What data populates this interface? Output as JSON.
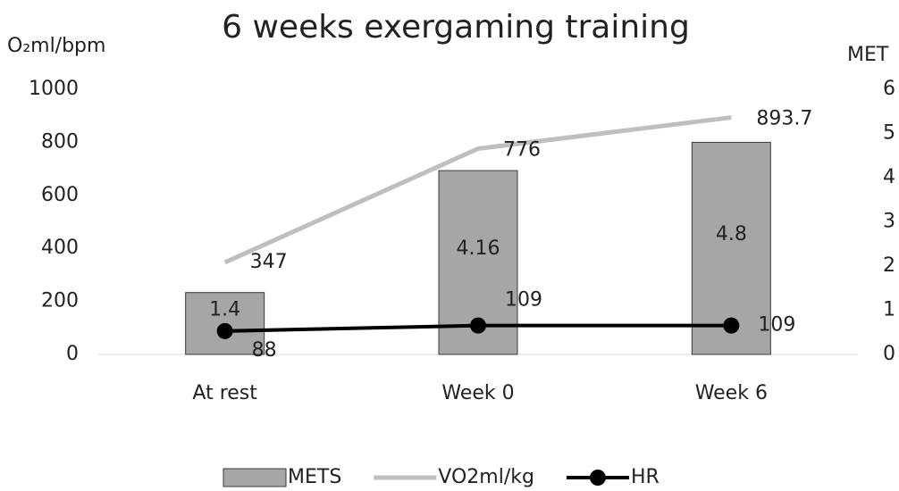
{
  "chart_data": {
    "type": "combo",
    "title": "6 weeks exergaming training",
    "y_label": "O₂ml/bpm",
    "y2_label": "MET",
    "categories": [
      "At rest",
      "Week 0",
      "Week 6"
    ],
    "ylim": [
      0,
      1000
    ],
    "yticks": [
      0,
      200,
      400,
      600,
      800,
      1000
    ],
    "y2lim": [
      0,
      6
    ],
    "y2ticks": [
      0,
      1,
      2,
      3,
      4,
      5,
      6
    ],
    "series": [
      {
        "name": "METS",
        "type": "bar",
        "axis": "y2",
        "color": "#a6a6a6",
        "values": [
          1.4,
          4.16,
          4.8
        ]
      },
      {
        "name": "VO2ml/kg",
        "type": "line",
        "color": "#bfbfbf",
        "values": [
          347,
          776,
          893.7
        ]
      },
      {
        "name": "HR",
        "type": "line",
        "marker": true,
        "color": "#000000",
        "values": [
          88,
          109,
          109
        ]
      }
    ]
  }
}
